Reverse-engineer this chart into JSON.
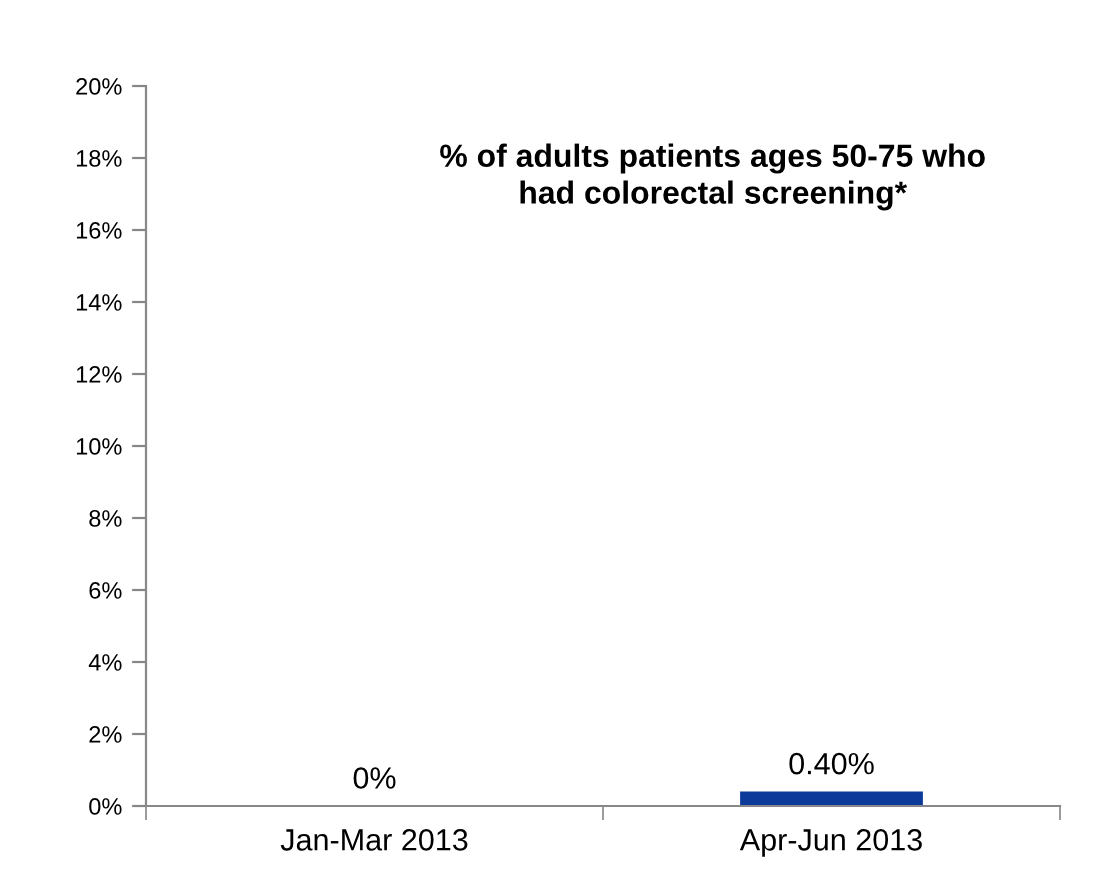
{
  "chart_data": {
    "type": "bar",
    "title": "% of adults patients ages 50-75 who\nhad colorectal screening*",
    "categories": [
      "Jan-Mar 2013",
      "Apr-Jun 2013"
    ],
    "values": [
      0,
      0.4
    ],
    "color": "#0b3a9a",
    "value_labels": [
      "0%",
      "0.40%"
    ],
    "ylim": [
      0,
      20
    ],
    "yticks": [
      {
        "value": 0,
        "label": "0%"
      },
      {
        "value": 2,
        "label": "2%"
      },
      {
        "value": 4,
        "label": "4%"
      },
      {
        "value": 6,
        "label": "6%"
      },
      {
        "value": 8,
        "label": "8%"
      },
      {
        "value": 10,
        "label": "10%"
      },
      {
        "value": 12,
        "label": "12%"
      },
      {
        "value": 14,
        "label": "14%"
      },
      {
        "value": 16,
        "label": "16%"
      },
      {
        "value": 18,
        "label": "18%"
      },
      {
        "value": 20,
        "label": "20%"
      }
    ],
    "grid": false,
    "legend": false
  }
}
